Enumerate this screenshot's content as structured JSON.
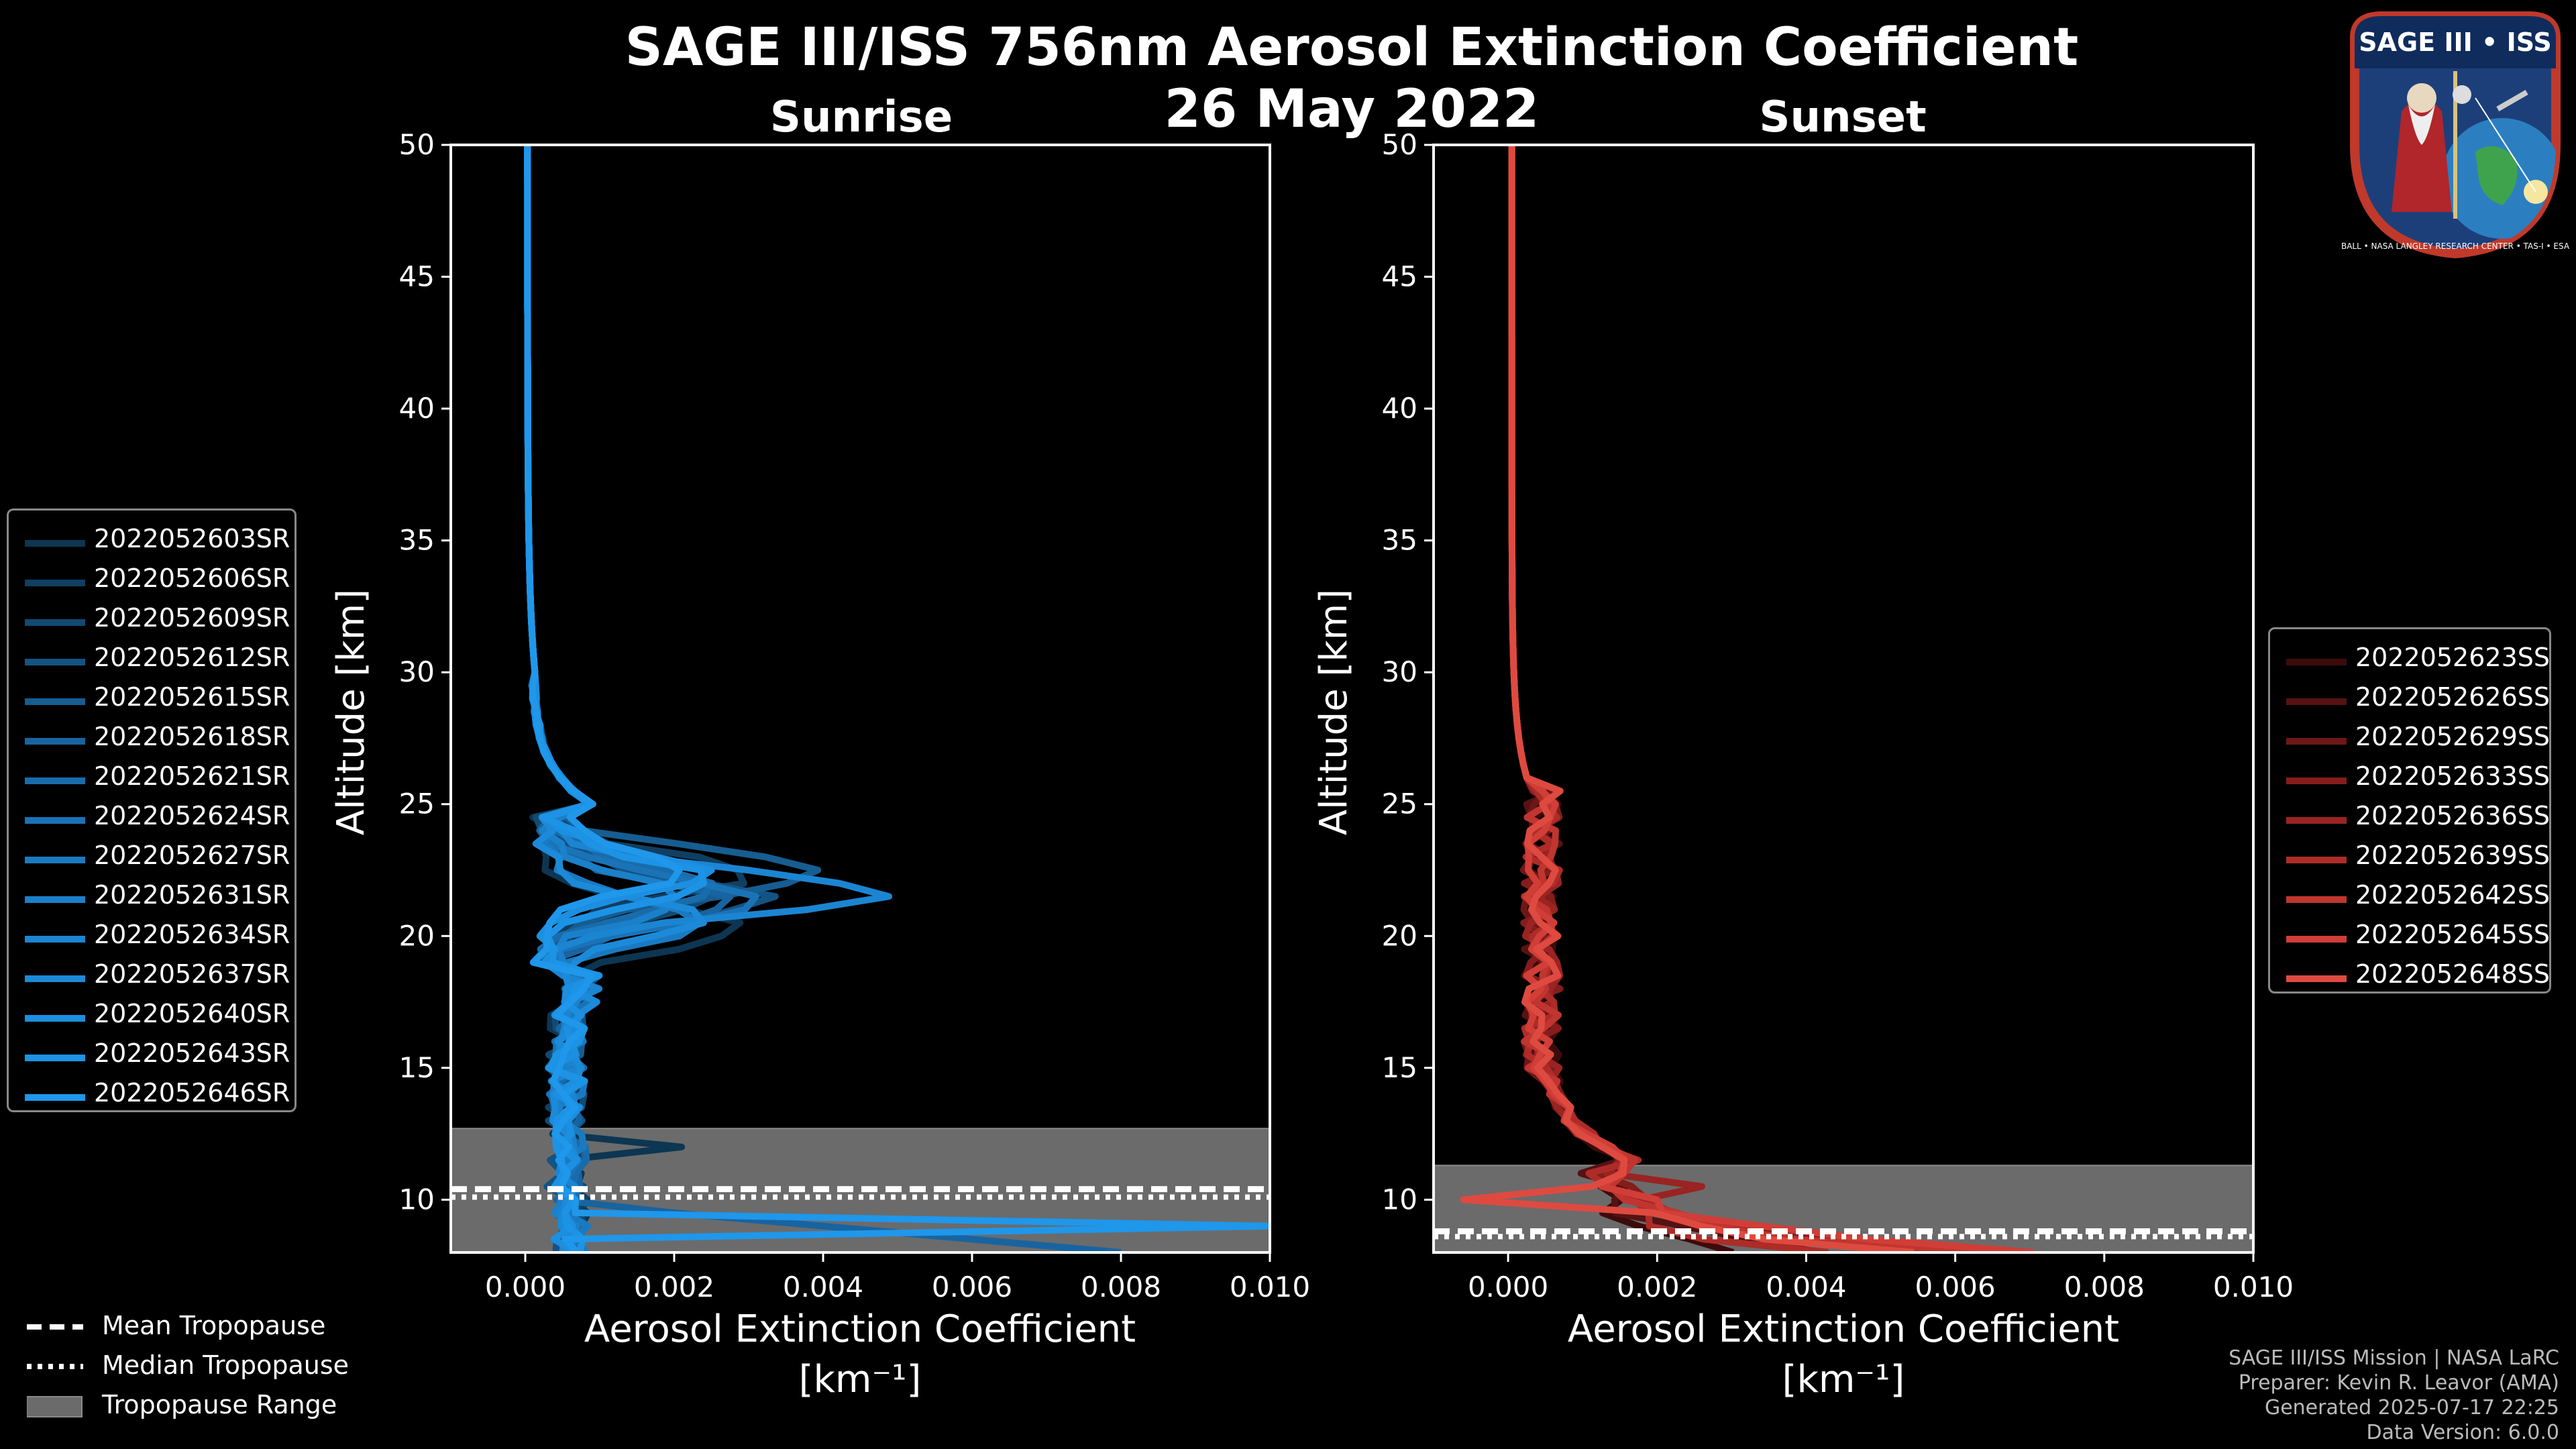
{
  "title": "SAGE III/ISS 756nm Aerosol Extinction Coefficient",
  "date": "26 May 2022",
  "logo": {
    "top_text": "SAGE III • ISS",
    "ring_text": "BALL • NASA LANGLEY RESEARCH CENTER • TAS-I • ESA",
    "accent": "#c0392b"
  },
  "footer": {
    "line1": "SAGE III/ISS Mission | NASA LaRC",
    "line2": "Preparer: Kevin R. Leavor (AMA)",
    "line3": "Generated 2025-07-17 22:25",
    "line4": "Data Version: 6.0.0"
  },
  "tropopause_legend": {
    "mean": "Mean Tropopause",
    "median": "Median Tropopause",
    "range": "Tropopause Range"
  },
  "chart_data": [
    {
      "type": "line",
      "title": "Sunrise",
      "xlabel": "Aerosol Extinction Coefficient",
      "xunit": "[km⁻¹]",
      "ylabel": "Altitude [km]",
      "xlim": [
        -0.001,
        0.01
      ],
      "ylim": [
        8,
        50
      ],
      "xticks": [
        "0.000",
        "0.002",
        "0.004",
        "0.006",
        "0.008",
        "0.010"
      ],
      "xtick_values": [
        0,
        0.002,
        0.004,
        0.006,
        0.008,
        0.01
      ],
      "yticks": [
        10,
        15,
        20,
        25,
        30,
        35,
        40,
        45,
        50
      ],
      "tropopause": {
        "range": [
          8,
          12.7
        ],
        "mean": 10.4,
        "median": 10.1
      },
      "series": [
        {
          "name": "2022052603SR",
          "color": "#0d3652"
        },
        {
          "name": "2022052606SR",
          "color": "#103f61"
        },
        {
          "name": "2022052609SR",
          "color": "#124a72"
        },
        {
          "name": "2022052612SR",
          "color": "#145383"
        },
        {
          "name": "2022052615SR",
          "color": "#165d91"
        },
        {
          "name": "2022052618SR",
          "color": "#1864a0"
        },
        {
          "name": "2022052621SR",
          "color": "#196cab"
        },
        {
          "name": "2022052624SR",
          "color": "#1a73b7"
        },
        {
          "name": "2022052627SR",
          "color": "#1a7ac1"
        },
        {
          "name": "2022052631SR",
          "color": "#1b80ca"
        },
        {
          "name": "2022052634SR",
          "color": "#1b85d2"
        },
        {
          "name": "2022052637SR",
          "color": "#1c8ad9"
        },
        {
          "name": "2022052640SR",
          "color": "#1c8fe0"
        },
        {
          "name": "2022052643SR",
          "color": "#1d93e6"
        },
        {
          "name": "2022052646SR",
          "color": "#1f97ea"
        }
      ]
    },
    {
      "type": "line",
      "title": "Sunset",
      "xlabel": "Aerosol Extinction Coefficient",
      "xunit": "[km⁻¹]",
      "ylabel": "Altitude [km]",
      "xlim": [
        -0.001,
        0.01
      ],
      "ylim": [
        8,
        50
      ],
      "xticks": [
        "0.000",
        "0.002",
        "0.004",
        "0.006",
        "0.008",
        "0.010"
      ],
      "xtick_values": [
        0,
        0.002,
        0.004,
        0.006,
        0.008,
        0.01
      ],
      "yticks": [
        10,
        15,
        20,
        25,
        30,
        35,
        40,
        45,
        50
      ],
      "tropopause": {
        "range": [
          8,
          11.3
        ],
        "mean": 8.8,
        "median": 8.6
      },
      "series": [
        {
          "name": "2022052623SS",
          "color": "#3d0b0b"
        },
        {
          "name": "2022052626SS",
          "color": "#561212"
        },
        {
          "name": "2022052629SS",
          "color": "#6e1717"
        },
        {
          "name": "2022052633SS",
          "color": "#841d1c"
        },
        {
          "name": "2022052636SS",
          "color": "#992422"
        },
        {
          "name": "2022052639SS",
          "color": "#ad2c28"
        },
        {
          "name": "2022052642SS",
          "color": "#c0352f"
        },
        {
          "name": "2022052645SS",
          "color": "#d03e37"
        },
        {
          "name": "2022052648SS",
          "color": "#de4a40"
        }
      ]
    }
  ]
}
